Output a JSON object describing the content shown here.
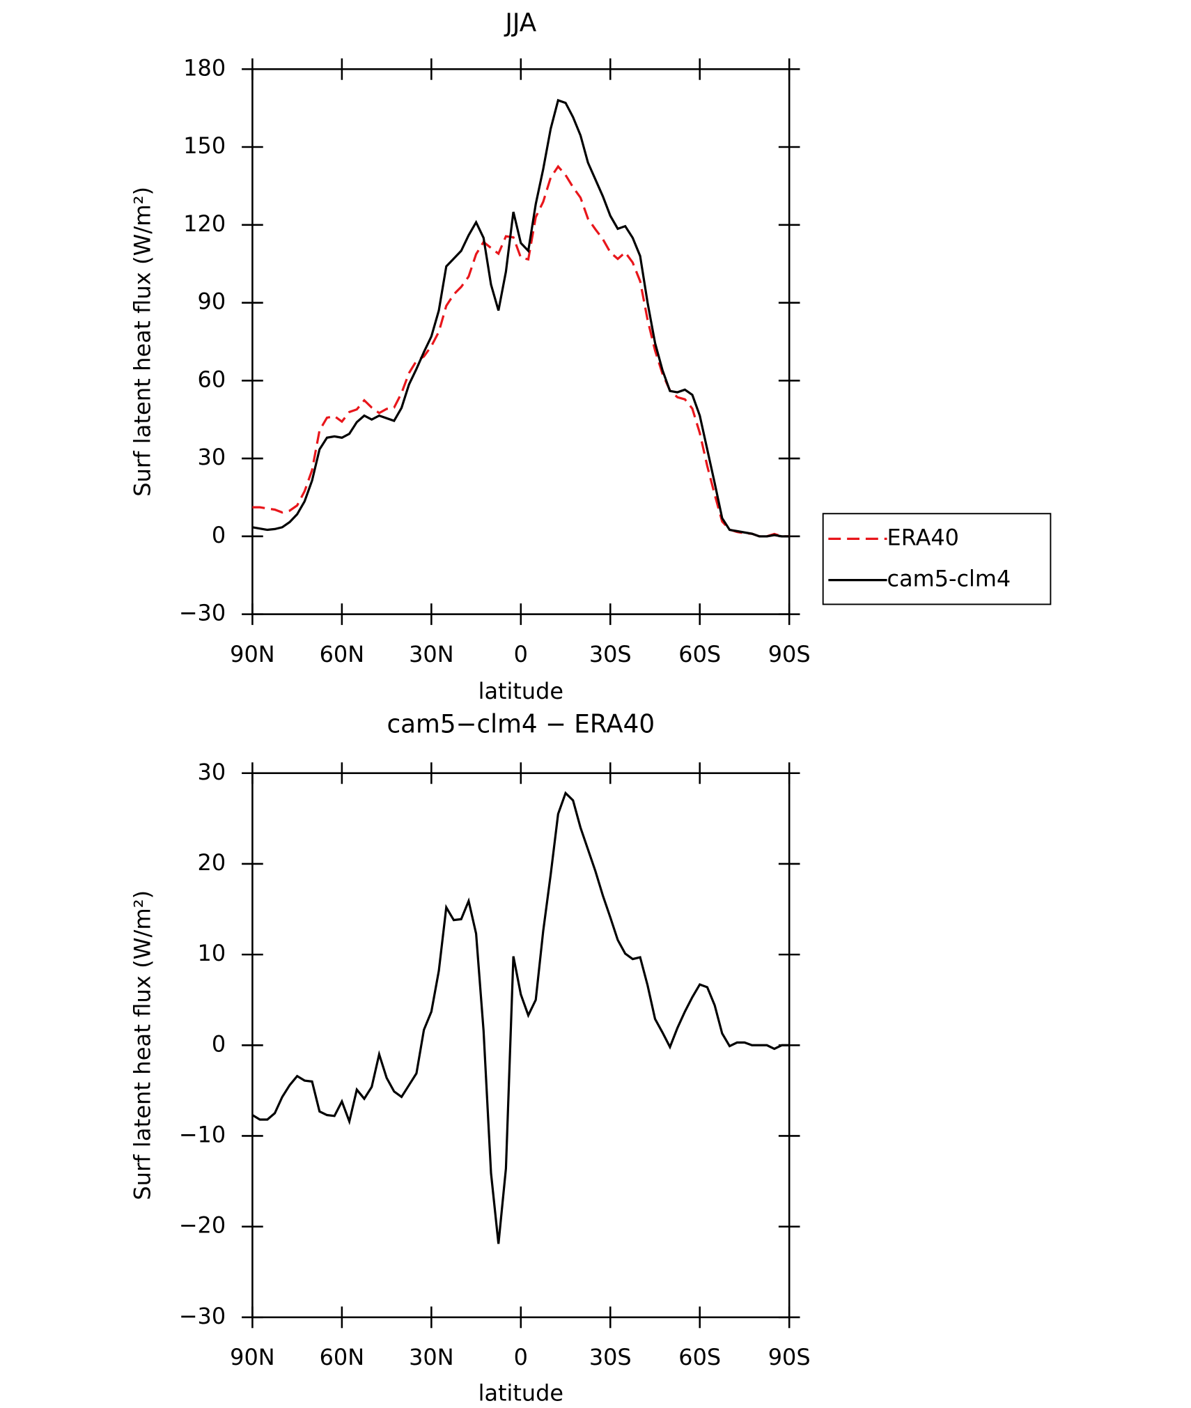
{
  "chart_data": [
    {
      "type": "line",
      "title": "JJA",
      "xlabel": "latitude",
      "ylabel": "Surf latent heat flux (W/m²)",
      "x": [
        90,
        87.5,
        85,
        82.5,
        80,
        77.5,
        75,
        72.5,
        70,
        67.5,
        65,
        62.5,
        60,
        57.5,
        55,
        52.5,
        50,
        47.5,
        45,
        42.5,
        40,
        37.5,
        35,
        32.5,
        30,
        27.5,
        25,
        22.5,
        20,
        17.5,
        15,
        12.5,
        10,
        7.5,
        5,
        2.5,
        0,
        -2.5,
        -5,
        -7.5,
        -10,
        -12.5,
        -15,
        -17.5,
        -20,
        -22.5,
        -25,
        -27.5,
        -30,
        -32.5,
        -35,
        -37.5,
        -40,
        -42.5,
        -45,
        -47.5,
        -50,
        -52.5,
        -55,
        -57.5,
        -60,
        -62.5,
        -65,
        -67.5,
        -70,
        -72.5,
        -75,
        -77.5,
        -80,
        -82.5,
        -85,
        -87.5,
        -90
      ],
      "series": [
        {
          "name": "ERA40",
          "color": "#e8161b",
          "dash": true,
          "values": [
            11.2,
            11.2,
            10.7,
            10.3,
            9.2,
            9.9,
            11.9,
            17.4,
            25.5,
            40.8,
            45.7,
            46.3,
            44.2,
            47.9,
            48.9,
            52.4,
            49.6,
            47.5,
            49.1,
            49.6,
            55.2,
            62.9,
            67.6,
            69.3,
            73.3,
            78.8,
            88.8,
            93.2,
            96.1,
            100.1,
            108.7,
            113.4,
            111.1,
            108.9,
            115.6,
            115.2,
            107.4,
            106.7,
            123,
            128.9,
            138.2,
            142.5,
            139.2,
            134.5,
            130.5,
            122.4,
            118.3,
            114.5,
            109.4,
            106.9,
            109.4,
            105.5,
            98.3,
            83.4,
            71.6,
            62.6,
            56.2,
            53.6,
            52.8,
            49.2,
            39.8,
            27.1,
            16.1,
            5.7,
            2.6,
            1.7,
            1.2,
            1,
            0,
            0,
            0.9,
            0,
            0
          ]
        },
        {
          "name": "cam5-clm4",
          "color": "#000000",
          "dash": false,
          "values": [
            3.5,
            3,
            2.5,
            2.8,
            3.5,
            5.5,
            8.5,
            13.5,
            21.5,
            33.5,
            38,
            38.5,
            38,
            39.5,
            44,
            46.5,
            45,
            46.5,
            45.5,
            44.5,
            49.5,
            58.5,
            64.5,
            71,
            77,
            87,
            104,
            107,
            110,
            116,
            121,
            115,
            97,
            87,
            102,
            125,
            113,
            110,
            128,
            141.5,
            157,
            168,
            167,
            161.5,
            154.5,
            144,
            137.5,
            131,
            123.5,
            118.5,
            119.5,
            115,
            108,
            90,
            74.5,
            64,
            56,
            55.5,
            56.5,
            54.5,
            46.5,
            33.5,
            20.5,
            7,
            2.5,
            2,
            1.5,
            1,
            0,
            0,
            0.5,
            0,
            0
          ]
        }
      ],
      "legend": true,
      "xlim": [
        90,
        -90
      ],
      "xticks": [
        {
          "value": 90,
          "label": "90N"
        },
        {
          "value": 60,
          "label": "60N"
        },
        {
          "value": 30,
          "label": "30N"
        },
        0,
        {
          "value": -30,
          "label": "30S"
        },
        {
          "value": -60,
          "label": "60S"
        },
        {
          "value": -90,
          "label": "90S"
        }
      ],
      "ylim": [
        -30,
        180
      ],
      "yticks": [
        {
          "value": -30,
          "label": "−30"
        },
        0,
        30,
        60,
        90,
        120,
        150,
        180
      ]
    },
    {
      "type": "line",
      "title": "cam5−clm4 − ERA40",
      "xlabel": "latitude",
      "ylabel": "Surf latent heat flux (W/m²)",
      "x": [
        90,
        87.5,
        85,
        82.5,
        80,
        77.5,
        75,
        72.5,
        70,
        67.5,
        65,
        62.5,
        60,
        57.5,
        55,
        52.5,
        50,
        47.5,
        45,
        42.5,
        40,
        37.5,
        35,
        32.5,
        30,
        27.5,
        25,
        22.5,
        20,
        17.5,
        15,
        12.5,
        10,
        7.5,
        5,
        2.5,
        0,
        -2.5,
        -5,
        -7.5,
        -10,
        -12.5,
        -15,
        -17.5,
        -20,
        -22.5,
        -25,
        -27.5,
        -30,
        -32.5,
        -35,
        -37.5,
        -40,
        -42.5,
        -45,
        -47.5,
        -50,
        -52.5,
        -55,
        -57.5,
        -60,
        -62.5,
        -65,
        -67.5,
        -70,
        -72.5,
        -75,
        -77.5,
        -80,
        -82.5,
        -85,
        -87.5,
        -90
      ],
      "series": [
        {
          "color": "#000000",
          "dash": false,
          "values": [
            -7.7,
            -8.2,
            -8.2,
            -7.5,
            -5.7,
            -4.4,
            -3.4,
            -3.9,
            -4,
            -7.3,
            -7.7,
            -7.8,
            -6.2,
            -8.4,
            -4.9,
            -5.9,
            -4.6,
            -1,
            -3.6,
            -5.1,
            -5.7,
            -4.4,
            -3.1,
            1.7,
            3.7,
            8.2,
            15.2,
            13.8,
            13.9,
            15.9,
            12.3,
            1.6,
            -14.1,
            -21.9,
            -13.6,
            9.8,
            5.6,
            3.3,
            5,
            12.6,
            18.8,
            25.5,
            27.8,
            27,
            24,
            21.6,
            19.2,
            16.5,
            14.1,
            11.6,
            10.1,
            9.5,
            9.7,
            6.6,
            2.9,
            1.4,
            -0.2,
            1.9,
            3.7,
            5.3,
            6.7,
            6.4,
            4.4,
            1.3,
            -0.1,
            0.3,
            0.3,
            0,
            0,
            0,
            -0.4,
            0,
            0
          ]
        }
      ],
      "legend": false,
      "xlim": [
        90,
        -90
      ],
      "xticks": [
        {
          "value": 90,
          "label": "90N"
        },
        {
          "value": 60,
          "label": "60N"
        },
        {
          "value": 30,
          "label": "30N"
        },
        0,
        {
          "value": -30,
          "label": "30S"
        },
        {
          "value": -60,
          "label": "60S"
        },
        {
          "value": -90,
          "label": "90S"
        }
      ],
      "ylim": [
        -30,
        30
      ],
      "yticks": [
        {
          "value": -30,
          "label": "−30"
        },
        {
          "value": -20,
          "label": "−20"
        },
        {
          "value": -10,
          "label": "−10"
        },
        0,
        10,
        20,
        30
      ]
    }
  ]
}
